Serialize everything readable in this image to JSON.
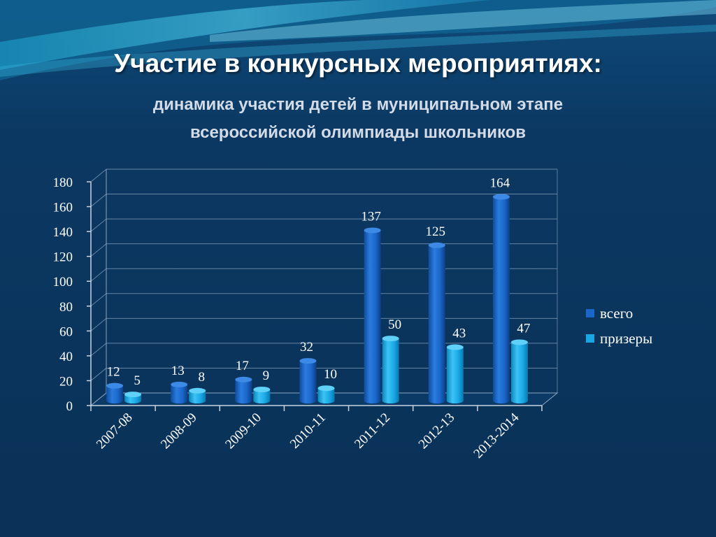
{
  "slide": {
    "title": "Участие в конкурсных мероприятиях:",
    "subtitle_line1": "динамика участия детей в муниципальном этапе",
    "subtitle_line2": "всероссийской олимпиады школьников"
  },
  "colors": {
    "background": "#0b3560",
    "series_total": "#1b66c9",
    "series_winners": "#19a8e6"
  },
  "chart_data": {
    "type": "bar",
    "categories": [
      "2007-08",
      "2008-09",
      "2009-10",
      "2010-11",
      "2011-12",
      "2012-13",
      "2013-2014"
    ],
    "series": [
      {
        "name": "всего",
        "values": [
          12,
          13,
          17,
          32,
          137,
          125,
          164
        ]
      },
      {
        "name": "призеры",
        "values": [
          5,
          8,
          9,
          10,
          50,
          43,
          47
        ]
      }
    ],
    "ylim": [
      0,
      180
    ],
    "yticks": [
      0,
      20,
      40,
      60,
      80,
      100,
      120,
      140,
      160,
      180
    ],
    "grid": true,
    "legend_position": "right",
    "style": "3d-cylinder"
  }
}
